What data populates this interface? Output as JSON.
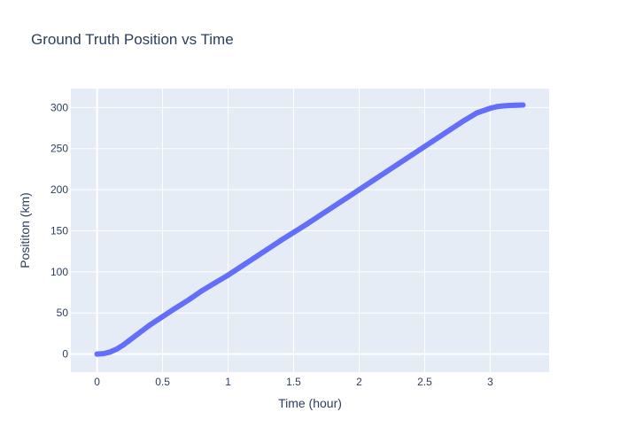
{
  "colors": {
    "paper_bg": "#ffffff",
    "plot_bg": "#e5ecf6",
    "grid": "#ffffff",
    "text": "#2a3f5f",
    "line": "#636efa"
  },
  "chart_data": {
    "type": "line",
    "title": "Ground Truth Position vs Time",
    "xlabel": "Time (hour)",
    "ylabel": "Posititon (km)",
    "xlim": [
      -0.2,
      3.45
    ],
    "ylim": [
      -22,
      323
    ],
    "xticks": [
      0,
      0.5,
      1,
      1.5,
      2,
      2.5,
      3
    ],
    "xtick_labels": [
      "0",
      "0.5",
      "1",
      "1.5",
      "2",
      "2.5",
      "3"
    ],
    "yticks": [
      0,
      50,
      100,
      150,
      200,
      250,
      300
    ],
    "ytick_labels": [
      "0",
      "50",
      "100",
      "150",
      "200",
      "250",
      "300"
    ],
    "grid": true,
    "legend": "none",
    "series": [
      {
        "x": [
          0,
          0.05,
          0.1,
          0.15,
          0.2,
          0.25,
          0.3,
          0.4,
          0.5,
          0.6,
          0.7,
          0.8,
          0.9,
          1.0,
          1.1,
          1.2,
          1.3,
          1.4,
          1.5,
          1.6,
          1.7,
          1.8,
          1.9,
          2.0,
          2.1,
          2.2,
          2.3,
          2.4,
          2.5,
          2.6,
          2.7,
          2.8,
          2.9,
          3.0,
          3.05,
          3.1,
          3.15,
          3.2,
          3.25
        ],
        "y": [
          0,
          0.5,
          2.5,
          6,
          11,
          17,
          23,
          35,
          45.5,
          56,
          66,
          77,
          86.5,
          96,
          106.5,
          117,
          127.5,
          138,
          148,
          158,
          168.5,
          179,
          189.5,
          200,
          210.5,
          221,
          231.5,
          242,
          252.5,
          263,
          273.5,
          284,
          293.5,
          299,
          301,
          302,
          302.5,
          302.8,
          303
        ]
      }
    ]
  }
}
